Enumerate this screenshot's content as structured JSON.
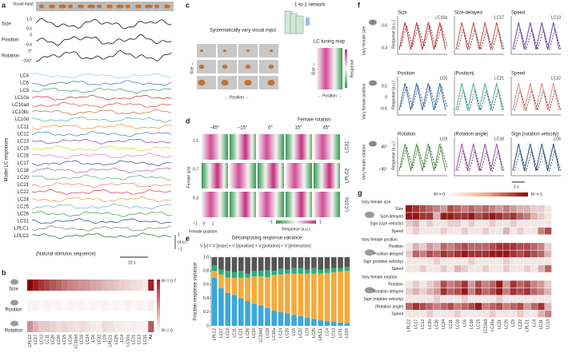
{
  "a": {
    "label": "a",
    "visual_input": "Visual input",
    "stimuli": [
      {
        "name": "Size",
        "ticks": [
          "1.5",
          "0.5"
        ]
      },
      {
        "name": "Position",
        "ticks": [
          "0",
          "−0.6"
        ]
      },
      {
        "name": "Rotation",
        "ticks": [
          "0°",
          "−100°"
        ]
      }
    ],
    "neurons": [
      "LC4",
      "LC6",
      "LC9",
      "LC10a",
      "LC10ad",
      "LC10bc",
      "LC10d",
      "LC11",
      "LC12",
      "LC13",
      "LC15",
      "LC16",
      "LC17",
      "LC18",
      "LC20",
      "LC21",
      "LC22",
      "LC24",
      "LC25",
      "LC26",
      "LC31",
      "LPLC1",
      "LPLC2"
    ],
    "ylabel": "Model LC responses",
    "scale": [
      "1",
      "(a.u.)",
      "−1"
    ],
    "caption": "(Natural stimulus sequence)",
    "time": "10 s"
  },
  "b": {
    "label": "b",
    "rows": [
      "Size",
      "Position",
      "Rotation"
    ],
    "columns": [
      "LPLC2",
      "LC17",
      "LC12",
      "LC11",
      "LC26",
      "LC20",
      "LC15",
      "LC16",
      "LC10ad",
      "LC18",
      "LC24",
      "LC6",
      "LC22",
      "LC9",
      "LPLC1",
      "LC25",
      "LC4",
      "LC10a",
      "LC21",
      "LC13",
      "LC31",
      "All"
    ],
    "values": [
      [
        0.7,
        0.62,
        0.55,
        0.5,
        0.46,
        0.42,
        0.38,
        0.35,
        0.32,
        0.3,
        0.28,
        0.25,
        0.23,
        0.2,
        0.18,
        0.16,
        0.14,
        0.12,
        0.1,
        0.08,
        0.06,
        0.6
      ],
      [
        0.03,
        0.03,
        0.02,
        0.03,
        0.02,
        0.03,
        0.02,
        0.03,
        0.02,
        0.03,
        0.02,
        0.03,
        0.02,
        0.03,
        0.02,
        0.03,
        0.02,
        0.03,
        0.02,
        0.03,
        0.02,
        0.05
      ],
      [
        0.3,
        0.2,
        0.15,
        0.15,
        0.12,
        0.1,
        0.12,
        0.1,
        0.08,
        0.1,
        0.08,
        0.06,
        0.05,
        0.1,
        0.08,
        0.06,
        0.05,
        0.04,
        0.05,
        0.03,
        0.03,
        0.45
      ]
    ],
    "cbar": [
      "R² = 0.7",
      "R² = 0"
    ]
  },
  "c": {
    "label": "c",
    "network": "1-to-1 network",
    "vary": "Systematically vary visual input",
    "size": "Size ↔",
    "position": "← Position →",
    "map_title": "LC tuning map",
    "map_size": "Size ↔",
    "map_position": "← Position →",
    "response": "Response"
  },
  "d": {
    "label": "d",
    "rotation_title": "Female rotation",
    "rotations": [
      "−45°",
      "−15°",
      "0°",
      "15°",
      "45°"
    ],
    "size_title": "Female size",
    "sizes": [
      "1.1",
      "0.7",
      "0.3"
    ],
    "rows": [
      "LC31",
      "LPLC2",
      "LC10a"
    ],
    "positions": [
      "−1",
      "0",
      "1"
    ],
    "position_title": "Female position",
    "response": "Response (a.u.)",
    "cbar": [
      "−1",
      "1"
    ]
  },
  "e": {
    "label": "e",
    "title": "Decomposing response variance:",
    "formula": "V [y] = V [ŷsize] + V [ŷposition] + V [ŷrotation] + V [ŷinteraction]",
    "ylabel": "Fraction response variance",
    "ylim": [
      0,
      1
    ],
    "yticks": [
      0,
      0.2,
      0.4,
      0.6,
      0.8,
      {
        "value": 1,
        "label": "1.0"
      }
    ],
    "categories": [
      "LPLC2",
      "LC17",
      "LC12",
      "LC11",
      "LC21",
      "LC26",
      "LC16",
      "LC10ad",
      "LC18",
      "LC10a",
      "LC24",
      "LC20",
      "LC6",
      "LC22",
      "LC9",
      "LC25",
      "LPLC1",
      "LC4",
      "LC13",
      "LC31",
      "LC15"
    ],
    "series": [
      {
        "color": "#3aa8dc",
        "values": [
          0.7,
          0.55,
          0.48,
          0.45,
          0.4,
          0.36,
          0.32,
          0.3,
          0.26,
          0.22,
          0.2,
          0.18,
          0.16,
          0.14,
          0.12,
          0.1,
          0.08,
          0.07,
          0.06,
          0.05,
          0.04
        ]
      },
      {
        "color": "#f5aa3c",
        "values": [
          0.1,
          0.2,
          0.22,
          0.25,
          0.3,
          0.34,
          0.4,
          0.42,
          0.45,
          0.52,
          0.55,
          0.58,
          0.6,
          0.62,
          0.64,
          0.66,
          0.68,
          0.7,
          0.72,
          0.74,
          0.76
        ]
      },
      {
        "color": "#2fae7a",
        "values": [
          0.08,
          0.07,
          0.1,
          0.08,
          0.1,
          0.06,
          0.08,
          0.08,
          0.1,
          0.06,
          0.08,
          0.06,
          0.08,
          0.08,
          0.06,
          0.08,
          0.06,
          0.06,
          0.06,
          0.05,
          0.06
        ]
      },
      {
        "color": "#555555",
        "values": [
          0.12,
          0.18,
          0.2,
          0.22,
          0.2,
          0.24,
          0.2,
          0.2,
          0.19,
          0.2,
          0.17,
          0.18,
          0.16,
          0.16,
          0.18,
          0.16,
          0.18,
          0.17,
          0.16,
          0.16,
          0.14
        ]
      }
    ]
  },
  "f": {
    "label": "f",
    "ylabel": "Response (a.u.)",
    "time": "2 s",
    "rows": [
      {
        "title": "Vary female size",
        "ticks": [
          "0.6",
          "0.3"
        ],
        "plots": [
          {
            "title": "Size",
            "cell": "LC10a",
            "color": "#d62728"
          },
          {
            "title": "Size-delayed",
            "cell": "LC17",
            "color": "#e0453a"
          },
          {
            "title": "Speed",
            "cell": "LC13",
            "color": "#6a3fb0"
          }
        ]
      },
      {
        "title": "Vary female position",
        "ticks": [
          "0.5",
          "0",
          "−0.5"
        ],
        "plots": [
          {
            "title": "Position",
            "cell": "LC6",
            "color": "#2a72b5"
          },
          {
            "title": "|Position|",
            "cell": "LC21",
            "color": "#3fb59a"
          },
          {
            "title": "Speed",
            "cell": "LC22",
            "color": "#f08070"
          }
        ]
      },
      {
        "title": "Vary female rotation",
        "ticks": [
          "45°",
          "−45°"
        ],
        "plots": [
          {
            "title": "Rotation",
            "cell": "LC9",
            "color": "#4a9a3a"
          },
          {
            "title": "|Rotation angle|",
            "cell": "LC18",
            "color": "#a24ab0"
          },
          {
            "title": "Sign (rotation velocity)",
            "cell": "LC6",
            "color": "#1f4e8c"
          }
        ]
      }
    ]
  },
  "g": {
    "label": "g",
    "cbar": [
      "R² = 0",
      "R² = 1"
    ],
    "columns": [
      "LPLC2",
      "LC17",
      "LC12",
      "LC20",
      "LC26",
      "LC24",
      "LC11",
      "LC16",
      "LC6",
      "LC18",
      "LC15",
      "LC10ad",
      "LC10a",
      "LC21",
      "LC25",
      "LC9",
      "LC22",
      "LPLC1",
      "LC4",
      "LC31",
      "LC13"
    ],
    "groups": [
      {
        "title": "Vary female size",
        "rows": [
          {
            "name": "Size",
            "values": [
              0.9,
              0.8,
              0.7,
              0.6,
              0.5,
              0.4,
              0.7,
              0.6,
              0.5,
              0.6,
              0.5,
              0.6,
              0.5,
              0.4,
              0.5,
              0.4,
              0.3,
              0.3,
              0.2,
              0.2,
              0.1
            ]
          },
          {
            "name": "Size-delayed",
            "values": [
              0.9,
              0.9,
              0.8,
              0.8,
              0.3,
              0.9,
              0.9,
              0.8,
              0.8,
              0.9,
              0.7,
              0.8,
              0.9,
              0.8,
              0.7,
              0.8,
              0.6,
              0.5,
              0.3,
              0.2,
              0.1
            ]
          },
          {
            "name": "Sign (size velocity)",
            "values": [
              0.2,
              0.3,
              0.1,
              0.2,
              0.1,
              0.1,
              0.2,
              0.2,
              0.1,
              0.2,
              0.1,
              0.1,
              0.2,
              0.1,
              0.1,
              0.2,
              0.1,
              0.1,
              0.1,
              0.1,
              0.1
            ]
          },
          {
            "name": "Speed",
            "values": [
              0.1,
              0.2,
              0.1,
              0.1,
              0.1,
              0.2,
              0.1,
              0.1,
              0.2,
              0.1,
              0.1,
              0.2,
              0.1,
              0.1,
              0.3,
              0.1,
              0.2,
              0.1,
              0.1,
              0.5,
              0.7
            ]
          }
        ]
      },
      {
        "title": "Vary female position",
        "rows": [
          {
            "name": "Position",
            "values": [
              0.1,
              0.3,
              0.2,
              0.4,
              0.3,
              0.6,
              0.5,
              0.6,
              0.7,
              0.6,
              0.6,
              0.6,
              0.7,
              0.8,
              0.8,
              0.8,
              0.7,
              0.7,
              0.6,
              0.5,
              0.2
            ]
          },
          {
            "name": "Position delayed",
            "values": [
              0.2,
              0.6,
              0.5,
              0.7,
              0.6,
              0.8,
              0.7,
              0.8,
              0.9,
              0.8,
              0.8,
              0.8,
              0.9,
              0.9,
              0.9,
              0.8,
              0.7,
              0.8,
              0.7,
              0.6,
              0.3
            ]
          },
          {
            "name": "Sign (positive velocity)",
            "values": [
              0.1,
              0.1,
              0.1,
              0.1,
              0.2,
              0.1,
              0.1,
              0.1,
              0.1,
              0.2,
              0.1,
              0.1,
              0.1,
              0.1,
              0.2,
              0.1,
              0.1,
              0.1,
              0.1,
              0.1,
              0.1
            ]
          },
          {
            "name": "Speed",
            "values": [
              0.1,
              0.1,
              0.2,
              0.1,
              0.1,
              0.2,
              0.1,
              0.3,
              0.2,
              0.1,
              0.1,
              0.2,
              0.1,
              0.1,
              0.2,
              0.1,
              0.1,
              0.2,
              0.1,
              0.3,
              0.6
            ]
          }
        ]
      },
      {
        "title": "Vary female rotation",
        "rows": [
          {
            "name": "Rotation",
            "values": [
              0.1,
              0.2,
              0.1,
              0.2,
              0.3,
              0.7,
              0.5,
              0.6,
              0.8,
              0.4,
              0.7,
              0.5,
              0.6,
              0.9,
              0.4,
              0.8,
              0.6,
              0.7,
              0.5,
              0.4,
              0.2
            ]
          },
          {
            "name": "Rotation delayed",
            "values": [
              0.2,
              0.3,
              0.2,
              0.3,
              0.4,
              0.8,
              0.6,
              0.7,
              0.9,
              0.5,
              0.8,
              0.6,
              0.7,
              0.9,
              0.5,
              0.8,
              0.7,
              0.8,
              0.6,
              0.5,
              0.3
            ]
          },
          {
            "name": "Sign (rotation velocity)",
            "values": [
              0.1,
              0.1,
              0.1,
              0.1,
              0.2,
              0.1,
              0.1,
              0.1,
              0.2,
              0.1,
              0.1,
              0.1,
              0.1,
              0.2,
              0.1,
              0.1,
              0.1,
              0.1,
              0.1,
              0.1,
              0.1
            ]
          },
          {
            "name": "|Rotation angle|",
            "values": [
              0.6,
              0.8,
              0.7,
              0.6,
              0.5,
              0.6,
              0.7,
              0.5,
              0.6,
              0.7,
              0.9,
              0.5,
              0.6,
              0.7,
              0.5,
              0.6,
              0.7,
              0.4,
              0.6,
              0.8,
              0.3
            ]
          },
          {
            "name": "Speed",
            "values": [
              0.1,
              0.1,
              0.1,
              0.2,
              0.1,
              0.1,
              0.1,
              0.2,
              0.1,
              0.1,
              0.1,
              0.1,
              0.2,
              0.1,
              0.1,
              0.1,
              0.2,
              0.1,
              0.1,
              0.3,
              0.5
            ]
          }
        ]
      }
    ]
  }
}
